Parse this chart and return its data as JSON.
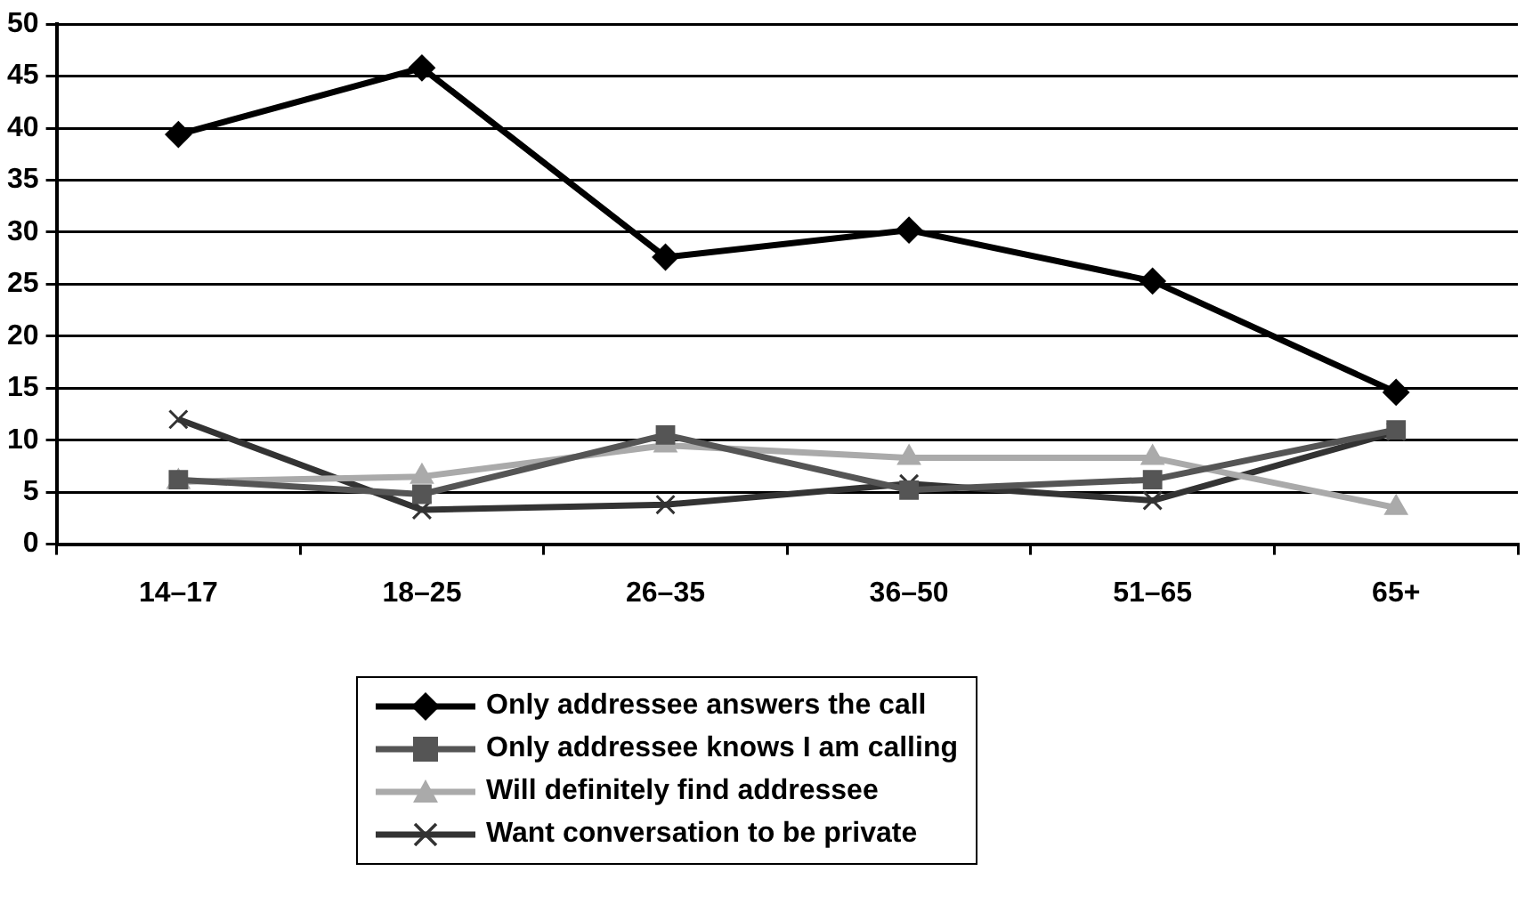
{
  "chart_data": {
    "type": "line",
    "categories": [
      "14–17",
      "18–25",
      "26–35",
      "36–50",
      "51–65",
      "65+"
    ],
    "series": [
      {
        "name": "Only addressee answers the call",
        "color": "#000000",
        "marker": "diamond",
        "values": [
          39.4,
          45.8,
          27.6,
          30.2,
          25.3,
          14.6
        ]
      },
      {
        "name": "Only addressee knows I am calling",
        "color": "#555555",
        "marker": "square",
        "values": [
          6.2,
          4.8,
          10.5,
          5.2,
          6.2,
          11.0
        ]
      },
      {
        "name": "Will definitely find addressee",
        "color": "#aaaaaa",
        "marker": "triangle",
        "values": [
          6.0,
          6.5,
          9.5,
          8.3,
          8.3,
          3.5
        ]
      },
      {
        "name": "Want conversation to be private",
        "color": "#333333",
        "marker": "cross",
        "values": [
          12.0,
          3.3,
          3.8,
          5.8,
          4.2,
          10.8
        ]
      }
    ],
    "ylim": [
      0,
      50
    ],
    "yticks": [
      0,
      5,
      10,
      15,
      20,
      25,
      30,
      35,
      40,
      45,
      50
    ],
    "grid": "y",
    "legend": "bottom",
    "line_style": "solid"
  }
}
